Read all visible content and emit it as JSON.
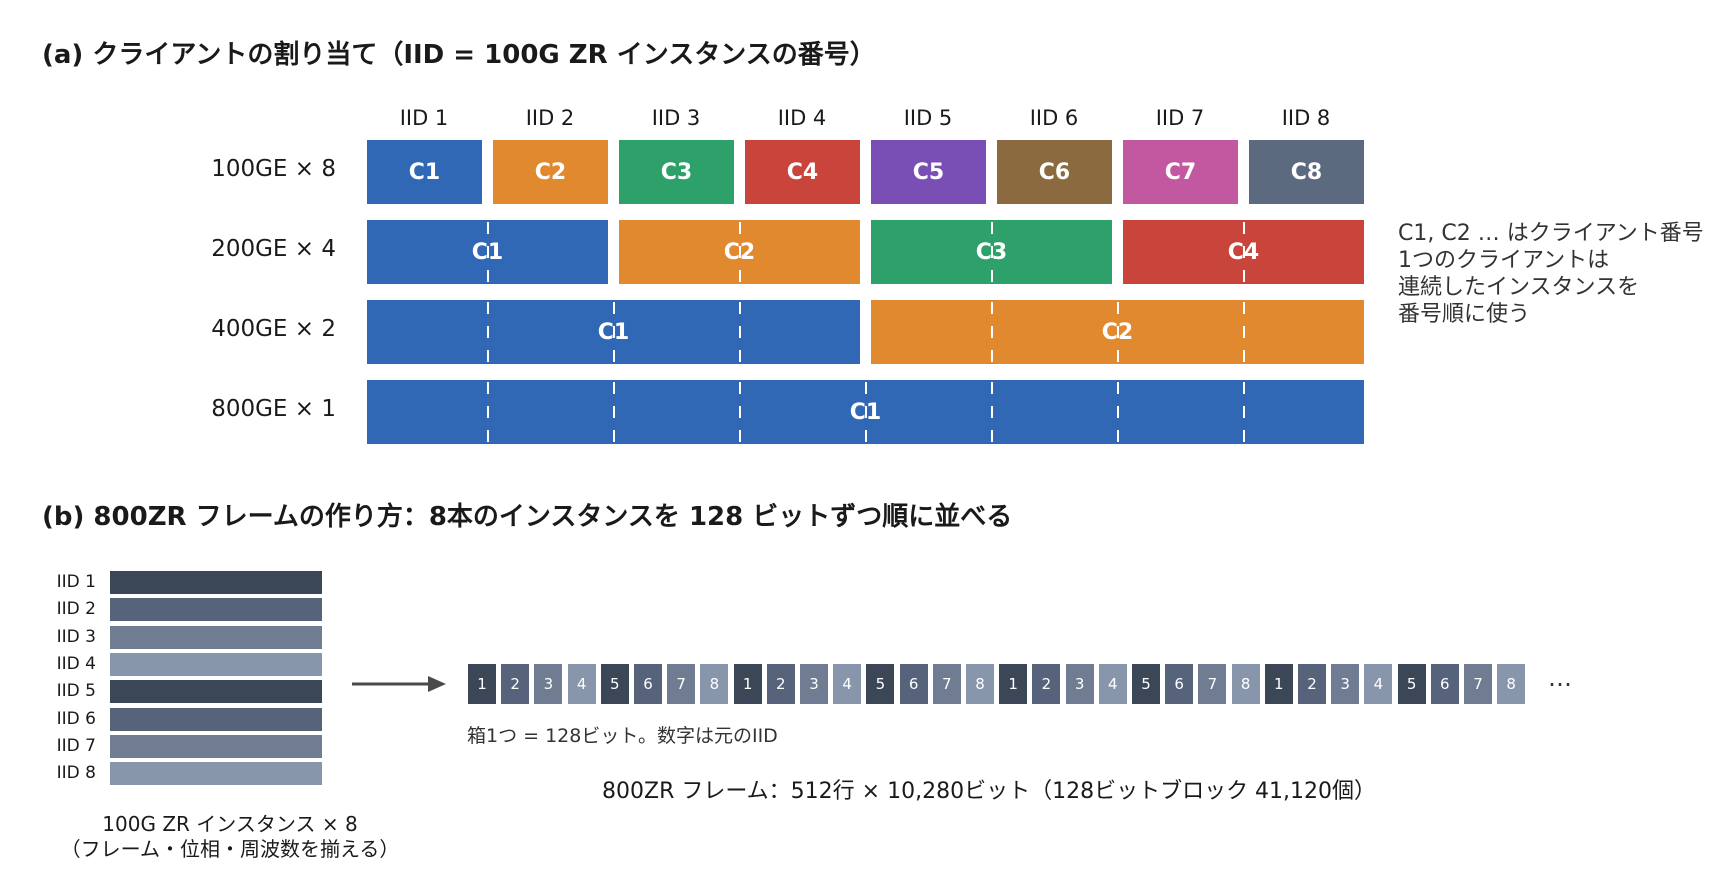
{
  "section_a": {
    "title": "(a) クライアントの割り当て（IID = 100G ZR インスタンスの番号）",
    "iid_headers": [
      "IID 1",
      "IID 2",
      "IID 3",
      "IID 4",
      "IID 5",
      "IID 6",
      "IID 7",
      "IID 8"
    ],
    "rows": [
      {
        "label": "100GE × 8",
        "span": 1,
        "clients": [
          {
            "name": "C1",
            "color": "#3068b5"
          },
          {
            "name": "C2",
            "color": "#e0892e"
          },
          {
            "name": "C3",
            "color": "#2ea06a"
          },
          {
            "name": "C4",
            "color": "#c9443b"
          },
          {
            "name": "C5",
            "color": "#7a4fb5"
          },
          {
            "name": "C6",
            "color": "#8a6a3e"
          },
          {
            "name": "C7",
            "color": "#c258a0"
          },
          {
            "name": "C8",
            "color": "#5c6a80"
          }
        ]
      },
      {
        "label": "200GE × 4",
        "span": 2,
        "clients": [
          {
            "name": "C1",
            "color": "#3068b5"
          },
          {
            "name": "C2",
            "color": "#e0892e"
          },
          {
            "name": "C3",
            "color": "#2ea06a"
          },
          {
            "name": "C4",
            "color": "#c9443b"
          }
        ]
      },
      {
        "label": "400GE × 2",
        "span": 4,
        "clients": [
          {
            "name": "C1",
            "color": "#3068b5"
          },
          {
            "name": "C2",
            "color": "#e0892e"
          }
        ]
      },
      {
        "label": "800GE × 1",
        "span": 8,
        "clients": [
          {
            "name": "C1",
            "color": "#3068b5"
          }
        ]
      }
    ],
    "note_lines": [
      "C1, C2 … はクライアント番号",
      "1つのクライアントは",
      "連続したインスタンスを",
      "番号順に使う"
    ]
  },
  "section_b": {
    "title": "(b) 800ZR フレームの作り方：8本のインスタンスを 128 ビットずつ順に並べる",
    "instances": [
      {
        "label": "IID 1",
        "color": "#3b4656"
      },
      {
        "label": "IID 2",
        "color": "#56637a"
      },
      {
        "label": "IID 3",
        "color": "#6f7c91"
      },
      {
        "label": "IID 4",
        "color": "#8896ab"
      },
      {
        "label": "IID 5",
        "color": "#3b4656"
      },
      {
        "label": "IID 6",
        "color": "#56637a"
      },
      {
        "label": "IID 7",
        "color": "#6f7c91"
      },
      {
        "label": "IID 8",
        "color": "#8896ab"
      }
    ],
    "instances_caption_1": "100G ZR インスタンス × 8",
    "instances_caption_2": "（フレーム・位相・周波数を揃える）",
    "sequence": [
      "1",
      "2",
      "3",
      "4",
      "5",
      "6",
      "7",
      "8",
      "1",
      "2",
      "3",
      "4",
      "5",
      "6",
      "7",
      "8",
      "1",
      "2",
      "3",
      "4",
      "5",
      "6",
      "7",
      "8",
      "1",
      "2",
      "3",
      "4",
      "5",
      "6",
      "7",
      "8"
    ],
    "box_colors": [
      "#3b4656",
      "#56637a",
      "#6f7c91",
      "#8896ab",
      "#3b4656",
      "#56637a",
      "#6f7c91",
      "#8896ab"
    ],
    "ellipsis": "…",
    "box_note": "箱1つ = 128ビット。数字は元のIID",
    "frame_caption": "800ZR フレーム：512行 × 10,280ビット（128ビットブロック 41,120個）"
  }
}
